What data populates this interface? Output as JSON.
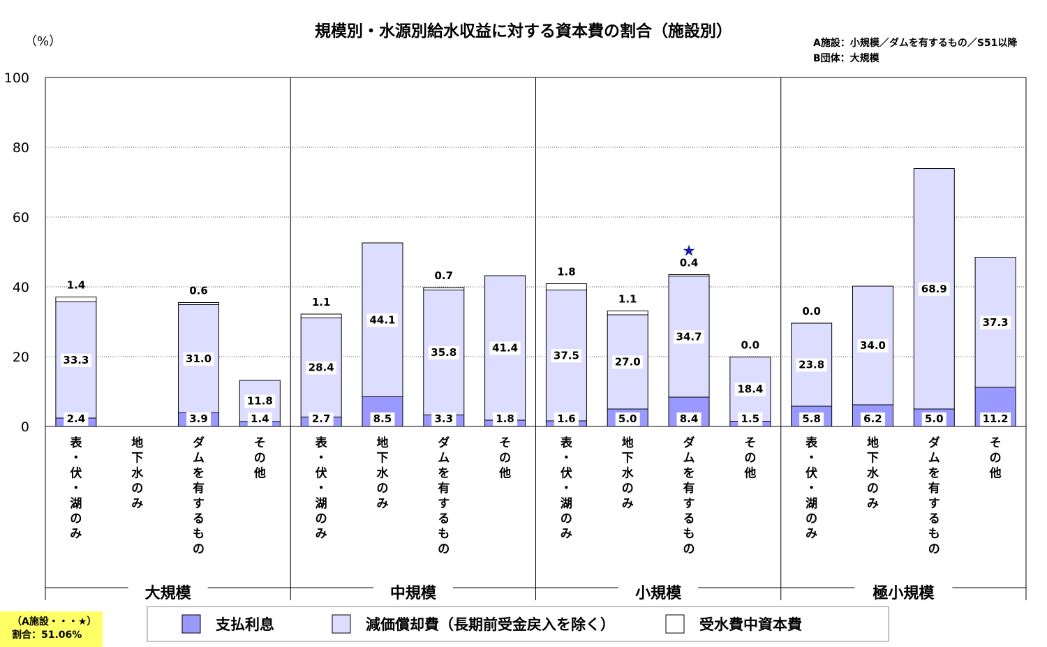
{
  "chart_data": {
    "type": "bar",
    "stacked": true,
    "title": "規模別・水源別給水収益に対する資本費の割合（施設別）",
    "y_unit": "（%）",
    "ylim": [
      0,
      100
    ],
    "yticks": [
      "0",
      "20",
      "40",
      "60",
      "80",
      "100"
    ],
    "grid": "horizontal dotted",
    "notes": [
      "A施設：小規模／ダムを有するもの／S51以降",
      "B団体：大規模"
    ],
    "groups": [
      "大規模",
      "中規模",
      "小規模",
      "極小規模"
    ],
    "categories": [
      "表・伏・湖のみ",
      "地下水のみ",
      "ダムを有するもの",
      "その他",
      "表・伏・湖のみ",
      "地下水のみ",
      "ダムを有するもの",
      "その他",
      "表・伏・湖のみ",
      "地下水のみ",
      "ダムを有するもの",
      "その他",
      "表・伏・湖のみ",
      "地下水のみ",
      "ダムを有するもの",
      "その他"
    ],
    "series": [
      {
        "name": "支払利息",
        "color": "#9999ff",
        "values": [
          2.4,
          null,
          3.9,
          1.4,
          2.7,
          8.5,
          3.3,
          1.8,
          1.6,
          5.0,
          8.4,
          1.5,
          5.8,
          6.2,
          5.0,
          11.2
        ],
        "labels": [
          "2.4",
          "",
          "3.9",
          "1.4",
          "2.7",
          "8.5",
          "3.3",
          "1.8",
          "1.6",
          "5.0",
          "8.4",
          "1.5",
          "5.8",
          "6.2",
          "5.0",
          "11.2"
        ]
      },
      {
        "name": "減価償却費（長期前受金戻入を除く）",
        "color": "#ddddff",
        "values": [
          33.3,
          null,
          31.0,
          11.8,
          28.4,
          44.1,
          35.8,
          41.4,
          37.5,
          27.0,
          34.7,
          18.4,
          23.8,
          34.0,
          68.9,
          37.3
        ],
        "labels": [
          "33.3",
          "",
          "31.0",
          "11.8",
          "28.4",
          "44.1",
          "35.8",
          "41.4",
          "37.5",
          "27.0",
          "34.7",
          "18.4",
          "23.8",
          "34.0",
          "68.9",
          "37.3"
        ]
      },
      {
        "name": "受水費中資本費",
        "color": "#ffffff",
        "values": [
          1.4,
          null,
          0.6,
          0.0,
          1.1,
          0.0,
          0.7,
          0.0,
          1.8,
          1.1,
          0.4,
          0.0,
          0.0,
          0.0,
          0.0,
          0.0
        ],
        "labels": [
          "1.4",
          "",
          "0.6",
          "",
          "1.1",
          "",
          "0.7",
          "",
          "1.8",
          "1.1",
          "0.4",
          "0.0",
          "0.0",
          "",
          "",
          ""
        ]
      }
    ],
    "marker": {
      "category_index": 10,
      "symbol": "★",
      "color": "#1a1aaa"
    },
    "callout": {
      "lines": [
        "（A施設・・・★）",
        "割合：51.06%"
      ],
      "background": "#ffff66"
    }
  }
}
